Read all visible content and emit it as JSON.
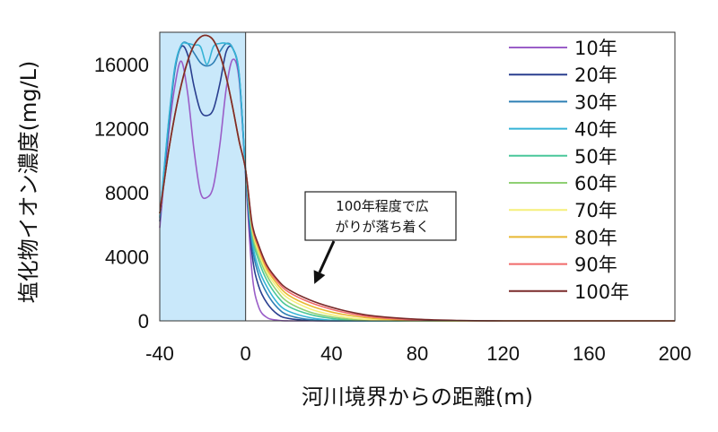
{
  "chart_data": {
    "type": "line",
    "title": "",
    "xlabel": "河川境界からの距離(m)",
    "ylabel": "塩化物イオン濃度(mg/L)",
    "xlim": [
      -40,
      200
    ],
    "ylim": [
      0,
      18000
    ],
    "xticks": [
      -40,
      0,
      40,
      80,
      120,
      160,
      200
    ],
    "yticks": [
      0,
      4000,
      8000,
      12000,
      16000
    ],
    "legend_position": "right",
    "shaded_region": {
      "x_from": -40,
      "x_to": 0,
      "color": "#c9e8fa"
    },
    "annotation": {
      "lines": [
        "100年程度で広",
        "がりが落ち着く"
      ],
      "arrow_to": {
        "x": 32,
        "y": 2300
      }
    },
    "x": [
      -40,
      -36,
      -33,
      -30,
      -27,
      -24,
      -21,
      -18,
      -15,
      -12,
      -9,
      -6,
      -3,
      0,
      3,
      6,
      10,
      15,
      20,
      30,
      40,
      50,
      60,
      80,
      100,
      120,
      150,
      200
    ],
    "series": [
      {
        "name": "10年",
        "color": "#9a5ec8",
        "values": [
          5800,
          11500,
          14600,
          16200,
          14200,
          10600,
          8000,
          7700,
          8400,
          11000,
          14500,
          16300,
          15000,
          9000,
          3000,
          900,
          200,
          40,
          0,
          0,
          0,
          0,
          0,
          0,
          0,
          0,
          0,
          0
        ]
      },
      {
        "name": "20年",
        "color": "#2a3f8f",
        "values": [
          6200,
          12000,
          15600,
          17100,
          16600,
          14600,
          13100,
          12800,
          13200,
          14800,
          16800,
          17000,
          15300,
          9200,
          4200,
          2200,
          1100,
          400,
          150,
          20,
          0,
          0,
          0,
          0,
          0,
          0,
          0,
          0
        ]
      },
      {
        "name": "30年",
        "color": "#2e7fb5",
        "values": [
          6400,
          12200,
          15700,
          17200,
          17300,
          16700,
          16100,
          15900,
          16100,
          16800,
          17300,
          17000,
          15300,
          9300,
          4800,
          2900,
          1700,
          800,
          350,
          80,
          10,
          0,
          0,
          0,
          0,
          0,
          0,
          0
        ]
      },
      {
        "name": "40年",
        "color": "#35b3d6",
        "values": [
          6500,
          12300,
          15800,
          17200,
          17300,
          17200,
          17100,
          16000,
          17100,
          17300,
          17300,
          17000,
          15400,
          9300,
          5100,
          3300,
          2100,
          1100,
          600,
          200,
          40,
          0,
          0,
          0,
          0,
          0,
          0,
          0
        ]
      },
      {
        "name": "50年",
        "color": "#4ac79a",
        "values": [
          6700,
          10500,
          12800,
          14700,
          16200,
          17200,
          17700,
          17800,
          17500,
          16600,
          15200,
          13300,
          11200,
          9400,
          5400,
          3800,
          2500,
          1500,
          900,
          400,
          150,
          40,
          0,
          0,
          0,
          0,
          0,
          0
        ]
      },
      {
        "name": "60年",
        "color": "#8fd073",
        "values": [
          6700,
          10500,
          12800,
          14700,
          16200,
          17200,
          17700,
          17800,
          17500,
          16600,
          15200,
          13300,
          11200,
          9400,
          5600,
          4100,
          2800,
          1800,
          1150,
          550,
          250,
          90,
          20,
          0,
          0,
          0,
          0,
          0
        ]
      },
      {
        "name": "70年",
        "color": "#f5ef7a",
        "values": [
          6700,
          10500,
          12800,
          14700,
          16200,
          17200,
          17700,
          17800,
          17500,
          16600,
          15200,
          13300,
          11200,
          9400,
          5800,
          4300,
          3000,
          2050,
          1400,
          750,
          380,
          170,
          60,
          0,
          0,
          0,
          0,
          0
        ]
      },
      {
        "name": "80年",
        "color": "#e8b832",
        "values": [
          6700,
          10500,
          12800,
          14700,
          16200,
          17200,
          17700,
          17800,
          17500,
          16600,
          15200,
          13300,
          11200,
          9400,
          5900,
          4500,
          3200,
          2250,
          1600,
          950,
          550,
          300,
          150,
          30,
          0,
          0,
          0,
          0
        ]
      },
      {
        "name": "90年",
        "color": "#f06a6a",
        "values": [
          6700,
          10500,
          12800,
          14700,
          16200,
          17200,
          17700,
          17800,
          17500,
          16600,
          15200,
          13300,
          11200,
          9400,
          6000,
          4650,
          3350,
          2420,
          1800,
          1150,
          720,
          420,
          230,
          60,
          10,
          0,
          0,
          0
        ]
      },
      {
        "name": "100年",
        "color": "#7a2a2a",
        "values": [
          6700,
          10500,
          12800,
          14700,
          16200,
          17200,
          17700,
          17800,
          17500,
          16600,
          15200,
          13300,
          11200,
          9400,
          6100,
          4750,
          3450,
          2550,
          1950,
          1300,
          850,
          520,
          300,
          100,
          25,
          0,
          0,
          0
        ]
      }
    ]
  }
}
